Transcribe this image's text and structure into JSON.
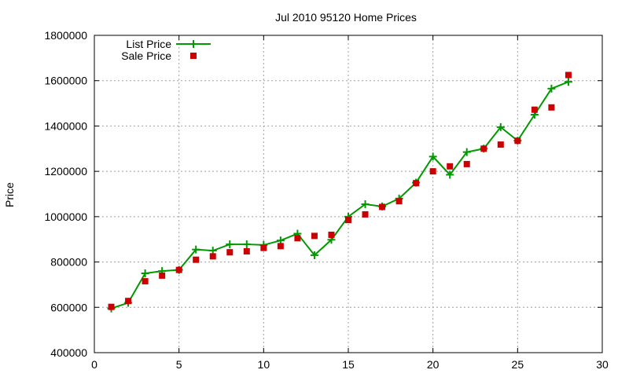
{
  "chart_data": {
    "type": "line",
    "title": "Jul 2010 95120 Home Prices",
    "xlabel": "",
    "ylabel": "Price",
    "xlim": [
      0,
      30
    ],
    "ylim": [
      400000,
      1800000
    ],
    "x_ticks": [
      "0",
      "5",
      "10",
      "15",
      "20",
      "25",
      "30"
    ],
    "y_ticks": [
      "400000",
      "600000",
      "800000",
      "1000000",
      "1200000",
      "1400000",
      "1600000",
      "1800000"
    ],
    "grid": true,
    "legend_position": "top-left",
    "x": [
      1,
      2,
      3,
      4,
      5,
      6,
      7,
      8,
      9,
      10,
      11,
      12,
      13,
      14,
      15,
      16,
      17,
      18,
      19,
      20,
      21,
      22,
      23,
      24,
      25,
      26,
      27,
      28
    ],
    "series": [
      {
        "name": "List Price",
        "style": "line-with-plus-markers",
        "color": "#009900",
        "values": [
          595000,
          620000,
          750000,
          760000,
          765000,
          855000,
          850000,
          878000,
          878000,
          875000,
          895000,
          925000,
          830000,
          898000,
          1000000,
          1055000,
          1045000,
          1080000,
          1150000,
          1265000,
          1185000,
          1285000,
          1300000,
          1395000,
          1335000,
          1450000,
          1565000,
          1595000
        ]
      },
      {
        "name": "Sale Price",
        "style": "square-markers",
        "color": "#cc0000",
        "values": [
          602000,
          628000,
          715000,
          740000,
          765000,
          810000,
          825000,
          843000,
          847000,
          862000,
          870000,
          905000,
          915000,
          920000,
          985000,
          1010000,
          1043000,
          1068000,
          1148000,
          1200000,
          1222000,
          1232000,
          1300000,
          1318000,
          1335000,
          1472000,
          1482000,
          1625000
        ]
      }
    ]
  }
}
